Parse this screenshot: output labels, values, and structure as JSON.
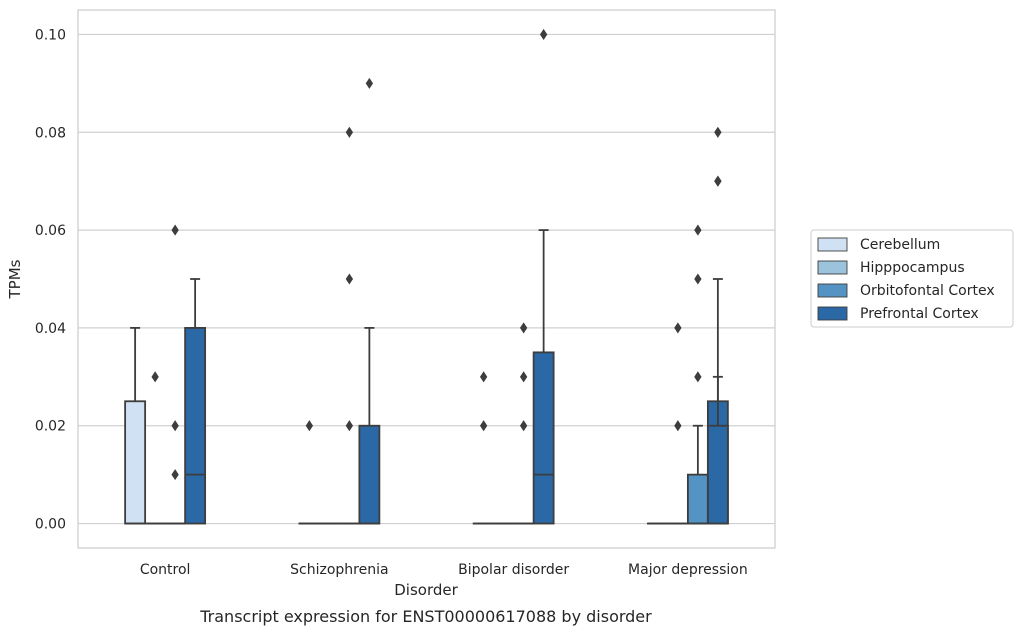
{
  "chart_data": {
    "type": "box",
    "title": "",
    "caption": "Transcript expression for ENST00000617088 by disorder",
    "xlabel": "Disorder",
    "ylabel": "TPMs",
    "ylim": [
      -0.005,
      0.105
    ],
    "yticks": [
      0.0,
      0.02,
      0.04,
      0.06,
      0.08,
      0.1
    ],
    "ytick_labels": [
      "0.00",
      "0.02",
      "0.04",
      "0.06",
      "0.08",
      "0.10"
    ],
    "categories": [
      "Control",
      "Schizophrenia",
      "Bipolar disorder",
      "Major depression"
    ],
    "grid": true,
    "legend_position": "right",
    "series": [
      {
        "name": "Cerebellum",
        "color": "#cfe1f2",
        "boxes": [
          {
            "q1": 0.0,
            "median": 0.0,
            "q3": 0.025,
            "whislo": 0.0,
            "whishi": 0.04,
            "fliers": []
          },
          {
            "q1": 0.0,
            "median": 0.0,
            "q3": 0.0,
            "whislo": 0.0,
            "whishi": 0.0,
            "fliers": [
              0.02
            ]
          },
          {
            "q1": 0.0,
            "median": 0.0,
            "q3": 0.0,
            "whislo": 0.0,
            "whishi": 0.0,
            "fliers": [
              0.02,
              0.03
            ]
          },
          {
            "q1": 0.0,
            "median": 0.0,
            "q3": 0.0,
            "whislo": 0.0,
            "whishi": 0.0,
            "fliers": []
          }
        ]
      },
      {
        "name": "Hipppocampus",
        "color": "#9cc3dc",
        "boxes": [
          {
            "q1": 0.0,
            "median": 0.0,
            "q3": 0.0,
            "whislo": 0.0,
            "whishi": 0.0,
            "fliers": [
              0.03
            ]
          },
          {
            "q1": 0.0,
            "median": 0.0,
            "q3": 0.0,
            "whislo": 0.0,
            "whishi": 0.0,
            "fliers": []
          },
          {
            "q1": 0.0,
            "median": 0.0,
            "q3": 0.0,
            "whislo": 0.0,
            "whishi": 0.0,
            "fliers": []
          },
          {
            "q1": 0.0,
            "median": 0.0,
            "q3": 0.0,
            "whislo": 0.0,
            "whishi": 0.0,
            "fliers": [
              0.02,
              0.04
            ]
          }
        ]
      },
      {
        "name": "Orbitofontal Cortex",
        "color": "#5394c4",
        "boxes": [
          {
            "q1": 0.0,
            "median": 0.0,
            "q3": 0.0,
            "whislo": 0.0,
            "whishi": 0.0,
            "fliers": [
              0.01,
              0.02,
              0.06
            ]
          },
          {
            "q1": 0.0,
            "median": 0.0,
            "q3": 0.0,
            "whislo": 0.0,
            "whishi": 0.0,
            "fliers": [
              0.02,
              0.05,
              0.08
            ]
          },
          {
            "q1": 0.0,
            "median": 0.0,
            "q3": 0.0,
            "whislo": 0.0,
            "whishi": 0.0,
            "fliers": [
              0.02,
              0.03,
              0.04
            ]
          },
          {
            "q1": 0.0,
            "median": 0.0,
            "q3": 0.01,
            "whislo": 0.0,
            "whishi": 0.02,
            "fliers": [
              0.03,
              0.05,
              0.06
            ]
          }
        ]
      },
      {
        "name": "Prefrontal Cortex",
        "color": "#2a68a6",
        "boxes": [
          {
            "q1": 0.0,
            "median": 0.01,
            "q3": 0.04,
            "whislo": 0.0,
            "whishi": 0.05,
            "fliers": []
          },
          {
            "q1": 0.0,
            "median": 0.0,
            "q3": 0.02,
            "whislo": 0.0,
            "whishi": 0.04,
            "fliers": [
              0.09
            ]
          },
          {
            "q1": 0.0,
            "median": 0.01,
            "q3": 0.035,
            "whislo": 0.0,
            "whishi": 0.06,
            "fliers": [
              0.1
            ]
          },
          {
            "q1": 0.0,
            "median": 0.0,
            "q3": 0.025,
            "whislo": 0.0,
            "whishi": 0.05,
            "fliers": [
              0.07,
              0.08
            ]
          }
        ]
      },
      {
        "name": "",
        "color": "#2a68a6",
        "note_in_legend": false,
        "boxes": [
          null,
          null,
          null,
          {
            "q1": 0.0,
            "median": 0.0,
            "q3": 0.02,
            "whislo": 0.0,
            "whishi": 0.03,
            "fliers": [
              0.07
            ]
          }
        ]
      }
    ]
  }
}
